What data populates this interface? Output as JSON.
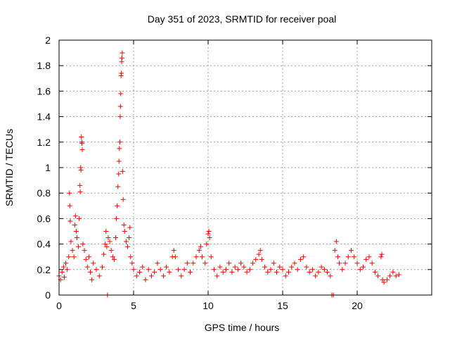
{
  "chart_data": {
    "type": "scatter",
    "title": "Day 351 of 2023, SRMTID for receiver poal",
    "xlabel": "GPS time / hours",
    "ylabel": "SRMTID / TECUs",
    "xlim": [
      0,
      25
    ],
    "ylim": [
      0,
      2
    ],
    "x_ticks": [
      0,
      5,
      10,
      15,
      20
    ],
    "x_tick_labels": [
      "0",
      "5",
      "10",
      "15",
      "20"
    ],
    "y_ticks": [
      0,
      0.2,
      0.4,
      0.6,
      0.8,
      1,
      1.2,
      1.4,
      1.6,
      1.8,
      2
    ],
    "y_tick_labels": [
      "0",
      "0.2",
      "0.4",
      "0.6",
      "0.8",
      "1",
      "1.2",
      "1.4",
      "1.6",
      "1.8",
      "2"
    ],
    "grid": true,
    "marker": "+",
    "color": "#ff0000",
    "series": [
      {
        "name": "SRMTID",
        "points": [
          [
            0.0,
            0.15
          ],
          [
            0.1,
            0.12
          ],
          [
            0.2,
            0.18
          ],
          [
            0.3,
            0.22
          ],
          [
            0.35,
            0.14
          ],
          [
            0.45,
            0.25
          ],
          [
            0.55,
            0.2
          ],
          [
            0.65,
            0.3
          ],
          [
            0.7,
            0.8
          ],
          [
            0.72,
            0.7
          ],
          [
            0.75,
            0.58
          ],
          [
            0.8,
            0.42
          ],
          [
            0.9,
            0.35
          ],
          [
            1.0,
            0.3
          ],
          [
            1.05,
            0.55
          ],
          [
            1.1,
            0.62
          ],
          [
            1.15,
            0.5
          ],
          [
            1.2,
            0.45
          ],
          [
            1.3,
            0.38
          ],
          [
            1.35,
            0.6
          ],
          [
            1.4,
            0.86
          ],
          [
            1.42,
            0.81
          ],
          [
            1.45,
            1.0
          ],
          [
            1.47,
            0.98
          ],
          [
            1.5,
            1.24
          ],
          [
            1.52,
            1.2
          ],
          [
            1.54,
            1.19
          ],
          [
            1.56,
            1.14
          ],
          [
            1.6,
            0.4
          ],
          [
            1.7,
            0.35
          ],
          [
            1.8,
            0.28
          ],
          [
            1.9,
            0.22
          ],
          [
            2.0,
            0.3
          ],
          [
            2.1,
            0.18
          ],
          [
            2.2,
            0.12
          ],
          [
            2.3,
            0.25
          ],
          [
            2.5,
            0.2
          ],
          [
            2.7,
            0.15
          ],
          [
            2.9,
            0.22
          ],
          [
            3.0,
            0.32
          ],
          [
            3.1,
            0.4
          ],
          [
            3.15,
            0.5
          ],
          [
            3.2,
            0.38
          ],
          [
            3.25,
            0.0
          ],
          [
            3.3,
            0.45
          ],
          [
            3.4,
            0.42
          ],
          [
            3.5,
            0.35
          ],
          [
            3.6,
            0.3
          ],
          [
            3.7,
            0.28
          ],
          [
            3.8,
            0.45
          ],
          [
            3.85,
            0.6
          ],
          [
            3.9,
            0.7
          ],
          [
            3.95,
            0.85
          ],
          [
            4.0,
            0.95
          ],
          [
            4.02,
            1.05
          ],
          [
            4.05,
            1.15
          ],
          [
            4.08,
            1.2
          ],
          [
            4.1,
            1.4
          ],
          [
            4.12,
            1.48
          ],
          [
            4.14,
            1.58
          ],
          [
            4.16,
            1.72
          ],
          [
            4.18,
            1.74
          ],
          [
            4.2,
            1.83
          ],
          [
            4.22,
            1.86
          ],
          [
            4.24,
            1.9
          ],
          [
            4.26,
            0.97
          ],
          [
            4.3,
            0.75
          ],
          [
            4.35,
            0.55
          ],
          [
            4.4,
            0.5
          ],
          [
            4.5,
            0.42
          ],
          [
            4.6,
            0.38
          ],
          [
            4.7,
            0.45
          ],
          [
            4.75,
            0.53
          ],
          [
            4.8,
            0.3
          ],
          [
            4.9,
            0.25
          ],
          [
            5.0,
            0.2
          ],
          [
            5.2,
            0.15
          ],
          [
            5.4,
            0.18
          ],
          [
            5.6,
            0.22
          ],
          [
            5.8,
            0.12
          ],
          [
            6.0,
            0.2
          ],
          [
            6.2,
            0.15
          ],
          [
            6.4,
            0.18
          ],
          [
            6.6,
            0.25
          ],
          [
            6.8,
            0.2
          ],
          [
            7.0,
            0.15
          ],
          [
            7.2,
            0.22
          ],
          [
            7.4,
            0.18
          ],
          [
            7.6,
            0.3
          ],
          [
            7.7,
            0.35
          ],
          [
            7.8,
            0.3
          ],
          [
            8.0,
            0.2
          ],
          [
            8.2,
            0.15
          ],
          [
            8.4,
            0.2
          ],
          [
            8.6,
            0.25
          ],
          [
            8.8,
            0.18
          ],
          [
            9.0,
            0.25
          ],
          [
            9.2,
            0.3
          ],
          [
            9.4,
            0.35
          ],
          [
            9.5,
            0.38
          ],
          [
            9.6,
            0.3
          ],
          [
            9.8,
            0.25
          ],
          [
            9.9,
            0.4
          ],
          [
            10.0,
            0.48
          ],
          [
            10.05,
            0.5
          ],
          [
            10.1,
            0.45
          ],
          [
            10.2,
            0.3
          ],
          [
            10.4,
            0.2
          ],
          [
            10.6,
            0.15
          ],
          [
            10.8,
            0.22
          ],
          [
            11.0,
            0.18
          ],
          [
            11.2,
            0.2
          ],
          [
            11.4,
            0.25
          ],
          [
            11.6,
            0.18
          ],
          [
            11.8,
            0.22
          ],
          [
            12.0,
            0.2
          ],
          [
            12.2,
            0.25
          ],
          [
            12.4,
            0.22
          ],
          [
            12.6,
            0.18
          ],
          [
            12.8,
            0.2
          ],
          [
            13.0,
            0.25
          ],
          [
            13.2,
            0.28
          ],
          [
            13.4,
            0.32
          ],
          [
            13.5,
            0.35
          ],
          [
            13.6,
            0.28
          ],
          [
            13.8,
            0.22
          ],
          [
            14.0,
            0.18
          ],
          [
            14.2,
            0.2
          ],
          [
            14.4,
            0.25
          ],
          [
            14.6,
            0.18
          ],
          [
            14.8,
            0.22
          ],
          [
            15.0,
            0.2
          ],
          [
            15.2,
            0.15
          ],
          [
            15.4,
            0.18
          ],
          [
            15.6,
            0.22
          ],
          [
            15.8,
            0.25
          ],
          [
            16.0,
            0.2
          ],
          [
            16.2,
            0.28
          ],
          [
            16.4,
            0.3
          ],
          [
            16.6,
            0.22
          ],
          [
            16.8,
            0.18
          ],
          [
            17.0,
            0.2
          ],
          [
            17.2,
            0.15
          ],
          [
            17.4,
            0.18
          ],
          [
            17.6,
            0.22
          ],
          [
            17.8,
            0.2
          ],
          [
            18.0,
            0.18
          ],
          [
            18.2,
            0.15
          ],
          [
            18.3,
            0.0
          ],
          [
            18.4,
            0.0
          ],
          [
            18.5,
            0.35
          ],
          [
            18.6,
            0.42
          ],
          [
            18.7,
            0.3
          ],
          [
            18.8,
            0.25
          ],
          [
            19.0,
            0.2
          ],
          [
            19.2,
            0.25
          ],
          [
            19.4,
            0.3
          ],
          [
            19.6,
            0.35
          ],
          [
            19.8,
            0.3
          ],
          [
            20.0,
            0.25
          ],
          [
            20.2,
            0.2
          ],
          [
            20.4,
            0.22
          ],
          [
            20.6,
            0.28
          ],
          [
            20.8,
            0.3
          ],
          [
            21.0,
            0.25
          ],
          [
            21.2,
            0.18
          ],
          [
            21.4,
            0.15
          ],
          [
            21.6,
            0.3
          ],
          [
            21.65,
            0.32
          ],
          [
            21.7,
            0.12
          ],
          [
            21.8,
            0.1
          ],
          [
            22.0,
            0.12
          ],
          [
            22.2,
            0.15
          ],
          [
            22.4,
            0.18
          ],
          [
            22.6,
            0.15
          ],
          [
            22.8,
            0.16
          ]
        ]
      }
    ]
  }
}
